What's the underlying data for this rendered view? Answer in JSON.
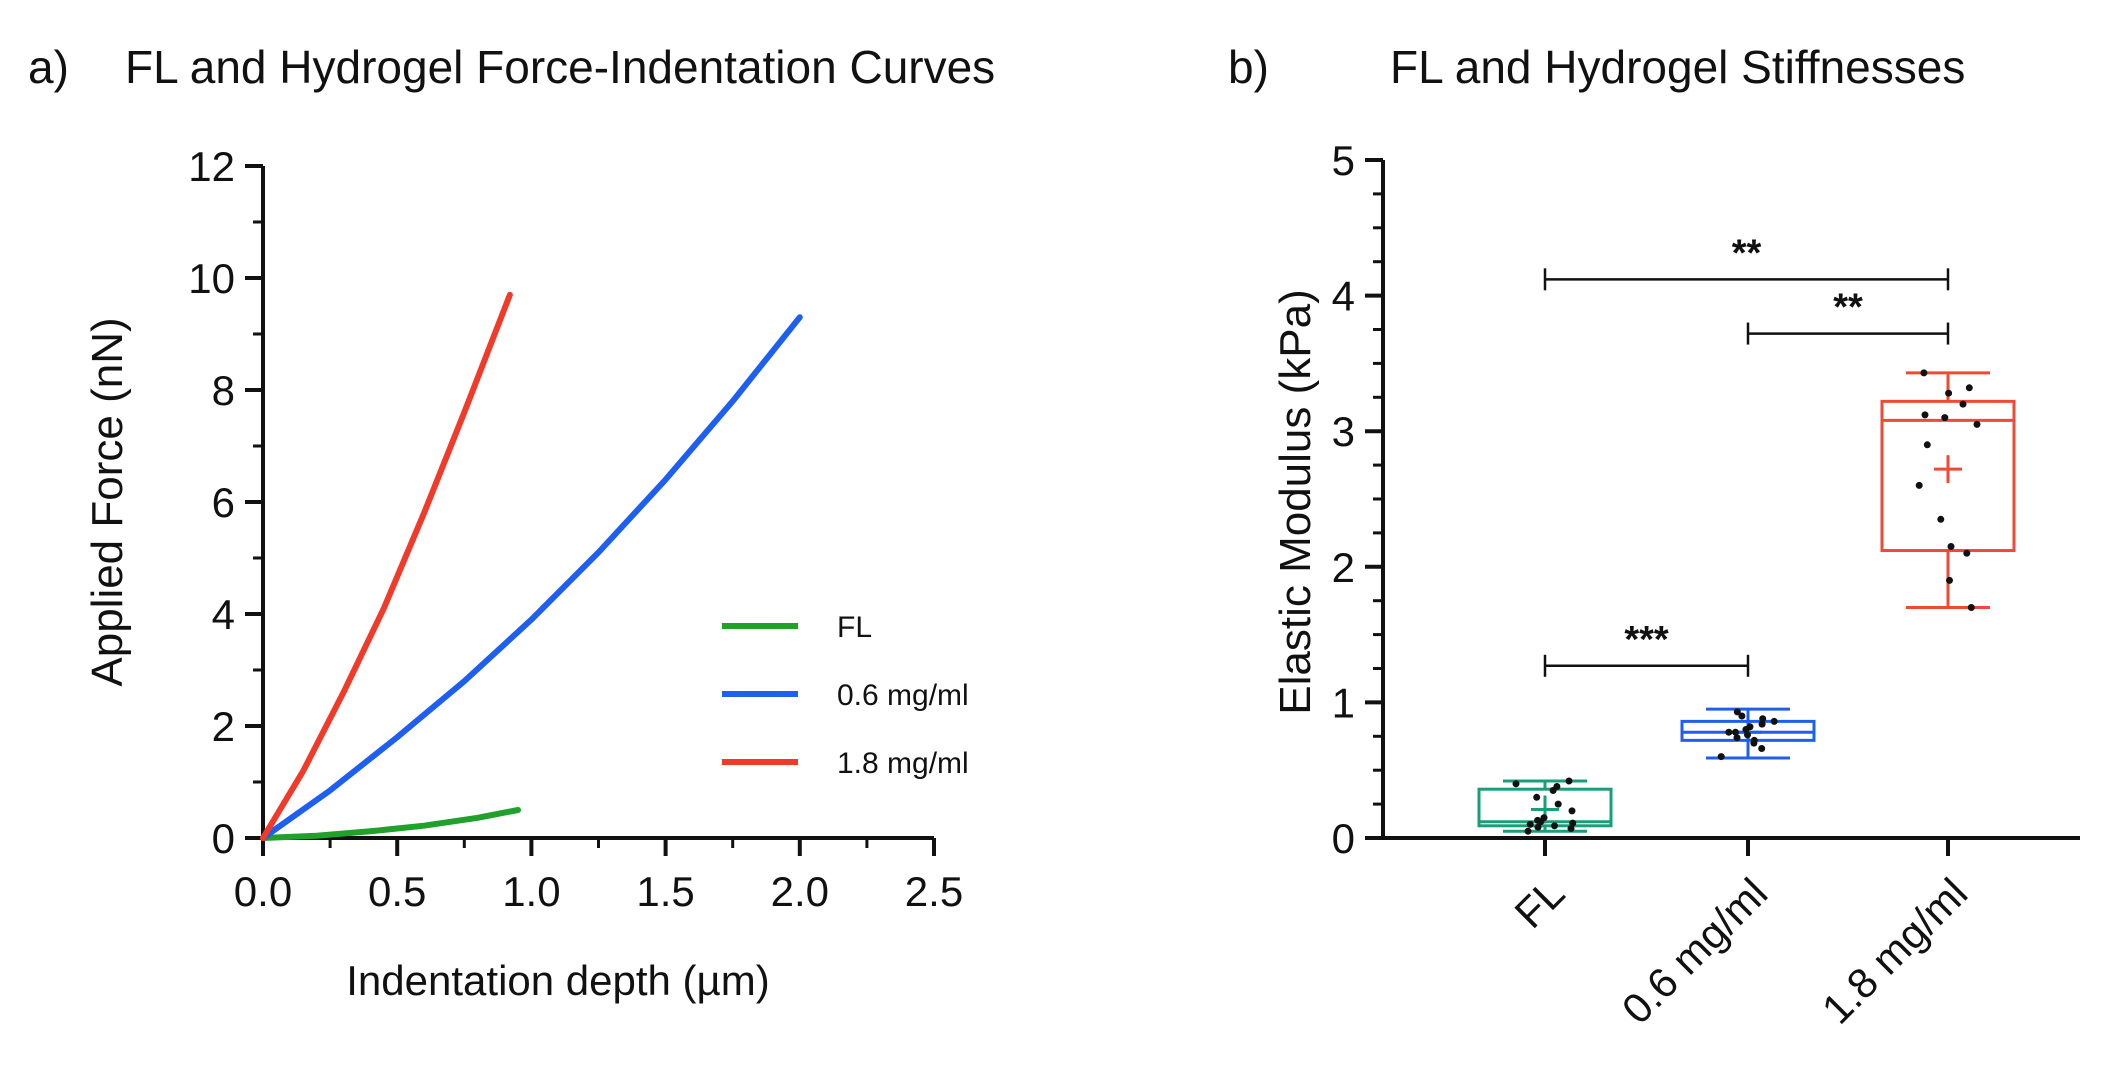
{
  "panels": {
    "a": {
      "letter": "a)",
      "title": "FL and Hydrogel Force-Indentation Curves"
    },
    "b": {
      "letter": "b)",
      "title": "FL and Hydrogel Stiffnesses"
    }
  },
  "chart_data": [
    {
      "type": "line",
      "title": "FL and Hydrogel Force-Indentation Curves",
      "xlabel": "Indentation depth (µm)",
      "ylabel": "Applied Force (nN)",
      "xlim": [
        0,
        2.5
      ],
      "ylim": [
        0,
        12
      ],
      "xticks": [
        "0.0",
        "0.5",
        "1.0",
        "1.5",
        "2.0",
        "2.5"
      ],
      "yticks": [
        "0",
        "2",
        "4",
        "6",
        "8",
        "10",
        "12"
      ],
      "grid": false,
      "legend": "center-right",
      "series": [
        {
          "name": "FL",
          "color": "#1fa12b",
          "x": [
            0,
            0.2,
            0.4,
            0.6,
            0.8,
            0.95
          ],
          "y": [
            0,
            0.04,
            0.12,
            0.22,
            0.36,
            0.5
          ]
        },
        {
          "name": "0.6 mg/ml",
          "color": "#1f5ff0",
          "x": [
            0,
            0.25,
            0.5,
            0.75,
            1.0,
            1.25,
            1.5,
            1.75,
            2.0
          ],
          "y": [
            0,
            0.85,
            1.8,
            2.8,
            3.9,
            5.1,
            6.4,
            7.8,
            9.3
          ]
        },
        {
          "name": "1.8 mg/ml",
          "color": "#f03a2a",
          "x": [
            0,
            0.15,
            0.3,
            0.45,
            0.6,
            0.75,
            0.92
          ],
          "y": [
            0,
            1.2,
            2.6,
            4.1,
            5.8,
            7.6,
            9.7
          ]
        }
      ]
    },
    {
      "type": "box",
      "title": "FL and Hydrogel Stiffnesses",
      "xlabel": "",
      "ylabel": "Elastic Modulus (kPa)",
      "ylim": [
        0,
        5
      ],
      "yticks": [
        "0",
        "1",
        "2",
        "3",
        "4",
        "5"
      ],
      "categories": [
        "FL",
        "0.6 mg/ml",
        "1.8 mg/ml"
      ],
      "boxes": [
        {
          "name": "FL",
          "color": "#1a9e7a",
          "min": 0.05,
          "q1": 0.09,
          "median": 0.12,
          "q3": 0.36,
          "max": 0.42,
          "mean": 0.21,
          "points": [
            0.05,
            0.07,
            0.08,
            0.09,
            0.1,
            0.11,
            0.12,
            0.13,
            0.15,
            0.2,
            0.25,
            0.3,
            0.35,
            0.38,
            0.4,
            0.42
          ]
        },
        {
          "name": "0.6 mg/ml",
          "color": "#1f5ff0",
          "min": 0.59,
          "q1": 0.72,
          "median": 0.78,
          "q3": 0.86,
          "max": 0.95,
          "mean": 0.78,
          "points": [
            0.6,
            0.66,
            0.7,
            0.72,
            0.74,
            0.76,
            0.78,
            0.78,
            0.8,
            0.82,
            0.84,
            0.86,
            0.88,
            0.9,
            0.93
          ]
        },
        {
          "name": "1.8 mg/ml",
          "color": "#f04a35",
          "min": 1.7,
          "q1": 2.12,
          "median": 3.08,
          "q3": 3.22,
          "max": 3.43,
          "mean": 2.72,
          "points": [
            1.7,
            1.9,
            2.1,
            2.15,
            2.35,
            2.6,
            2.9,
            3.05,
            3.1,
            3.12,
            3.2,
            3.28,
            3.32,
            3.43
          ]
        }
      ],
      "annotations": [
        {
          "label": "**",
          "from": "FL",
          "to": "1.8 mg/ml",
          "y": 4.12
        },
        {
          "label": "**",
          "from": "0.6 mg/ml",
          "to": "1.8 mg/ml",
          "y": 3.72
        },
        {
          "label": "***",
          "from": "FL",
          "to": "0.6 mg/ml",
          "y": 1.27
        }
      ]
    }
  ]
}
